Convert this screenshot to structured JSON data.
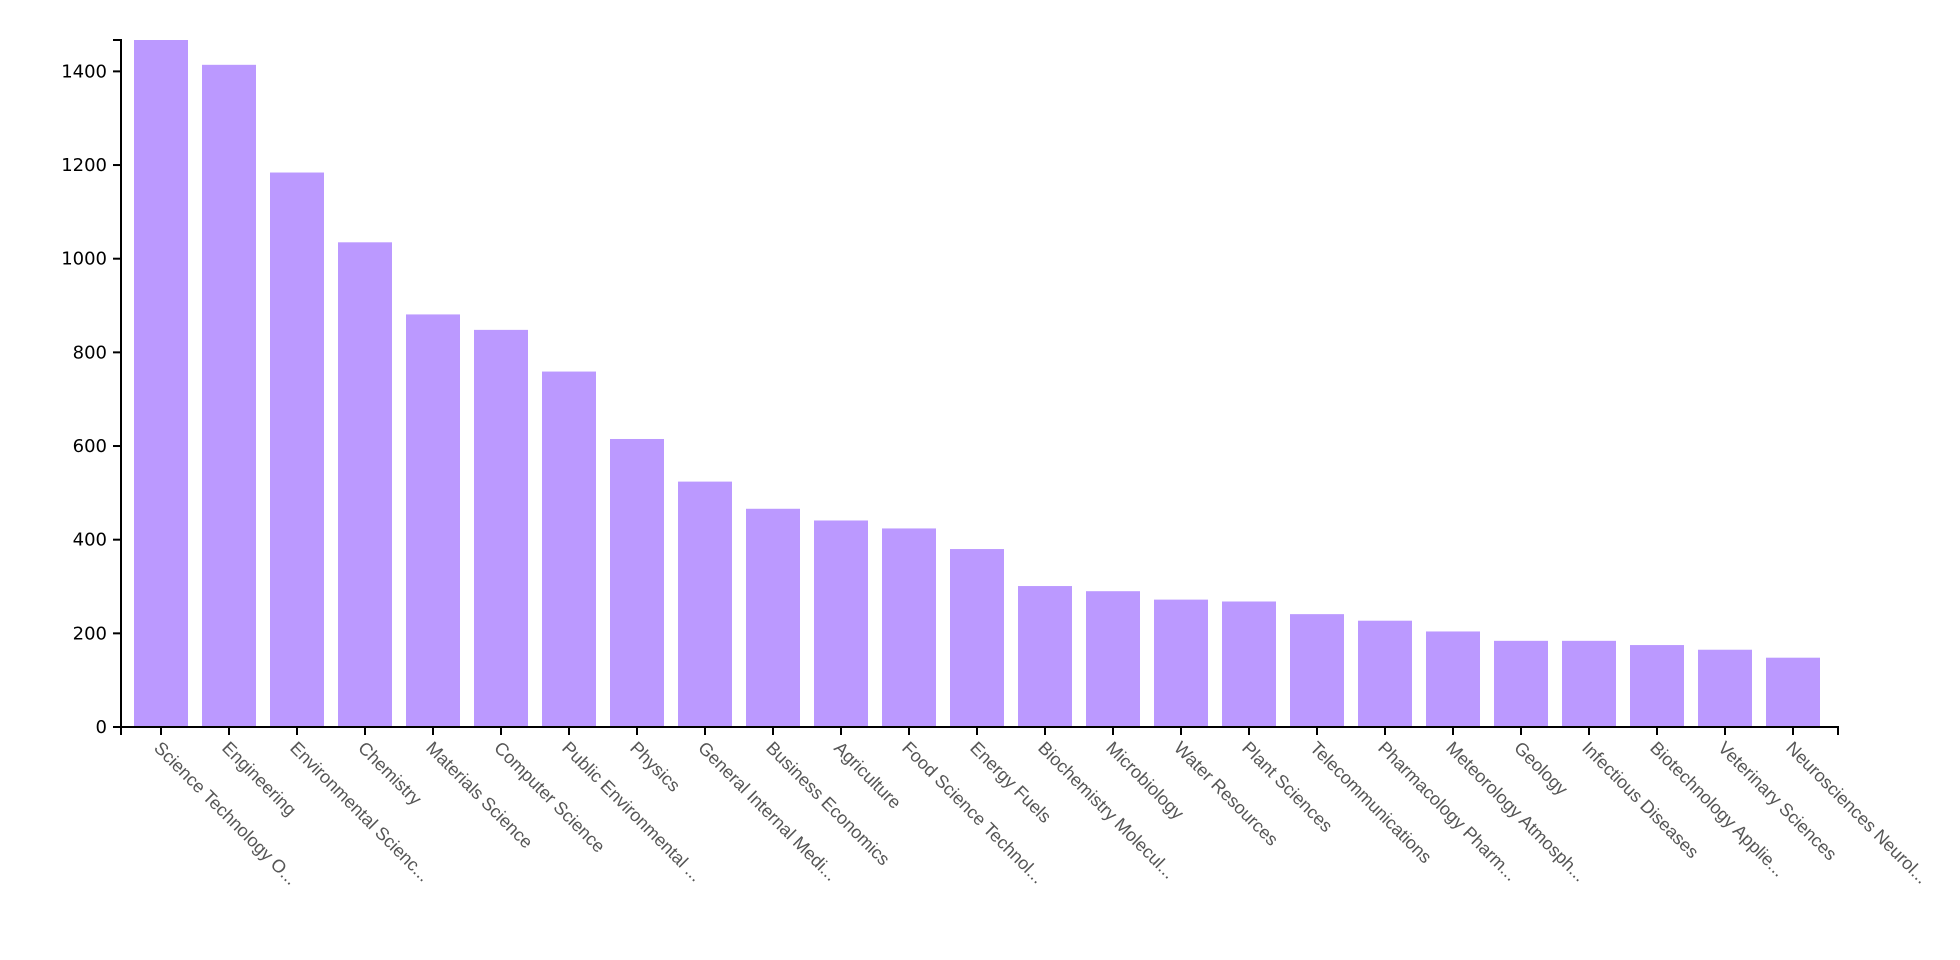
{
  "chart_data": {
    "type": "bar",
    "categories": [
      "Science Technology O...",
      "Engineering",
      "Environmental Scienc...",
      "Chemistry",
      "Materials Science",
      "Computer Science",
      "Public Environmental ...",
      "Physics",
      "General Internal Medi...",
      "Business Economics",
      "Agriculture",
      "Food Science Technol...",
      "Energy Fuels",
      "Biochemistry Molecul...",
      "Microbiology",
      "Water Resources",
      "Plant Sciences",
      "Telecommunications",
      "Pharmacology Pharm...",
      "Meteorology Atmosph...",
      "Geology",
      "Infectious Diseases",
      "Biotechnology Applie...",
      "Veterinary Sciences",
      "Neurosciences Neurol..."
    ],
    "values": [
      1467,
      1414,
      1184,
      1035,
      881,
      848,
      759,
      615,
      524,
      466,
      441,
      424,
      380,
      301,
      290,
      272,
      268,
      241,
      227,
      204,
      184,
      184,
      175,
      165,
      148
    ],
    "ylim": [
      0,
      1467
    ],
    "yticks": [
      "0",
      "200",
      "400",
      "600",
      "800",
      "1000",
      "1200",
      "1400"
    ],
    "bar_color": "#bb99ff",
    "grid": false,
    "legend": "none"
  }
}
